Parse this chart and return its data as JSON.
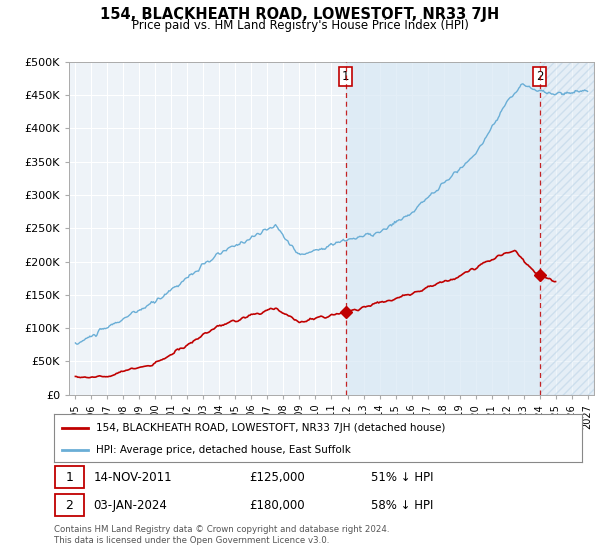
{
  "title": "154, BLACKHEATH ROAD, LOWESTOFT, NR33 7JH",
  "subtitle": "Price paid vs. HM Land Registry's House Price Index (HPI)",
  "legend_line1": "154, BLACKHEATH ROAD, LOWESTOFT, NR33 7JH (detached house)",
  "legend_line2": "HPI: Average price, detached house, East Suffolk",
  "note1_date": "14-NOV-2011",
  "note1_price": "£125,000",
  "note1_hpi": "51% ↓ HPI",
  "note2_date": "03-JAN-2024",
  "note2_price": "£180,000",
  "note2_hpi": "58% ↓ HPI",
  "footnote": "Contains HM Land Registry data © Crown copyright and database right 2024.\nThis data is licensed under the Open Government Licence v3.0.",
  "hpi_color": "#6aaed6",
  "price_color": "#c00000",
  "vline_color": "#c00000",
  "grid_color": "#cccccc",
  "bg_color": "#f0f4f8",
  "plot_bg": "#eef3f8",
  "ylim": [
    0,
    500000
  ],
  "yticks": [
    0,
    50000,
    100000,
    150000,
    200000,
    250000,
    300000,
    350000,
    400000,
    450000,
    500000
  ],
  "ytick_labels": [
    "£0",
    "£50K",
    "£100K",
    "£150K",
    "£200K",
    "£250K",
    "£300K",
    "£350K",
    "£400K",
    "£450K",
    "£500K"
  ],
  "xtick_years": [
    "1995",
    "1996",
    "1997",
    "1998",
    "1999",
    "2000",
    "2001",
    "2002",
    "2003",
    "2004",
    "2005",
    "2006",
    "2007",
    "2008",
    "2009",
    "2010",
    "2011",
    "2012",
    "2013",
    "2014",
    "2015",
    "2016",
    "2017",
    "2018",
    "2019",
    "2020",
    "2021",
    "2022",
    "2023",
    "2024",
    "2025",
    "2026",
    "2027"
  ],
  "purchase1_x": 2011.88,
  "purchase1_y": 125000,
  "purchase2_x": 2024.01,
  "purchase2_y": 180000,
  "xlim_left": 1994.6,
  "xlim_right": 2027.4
}
